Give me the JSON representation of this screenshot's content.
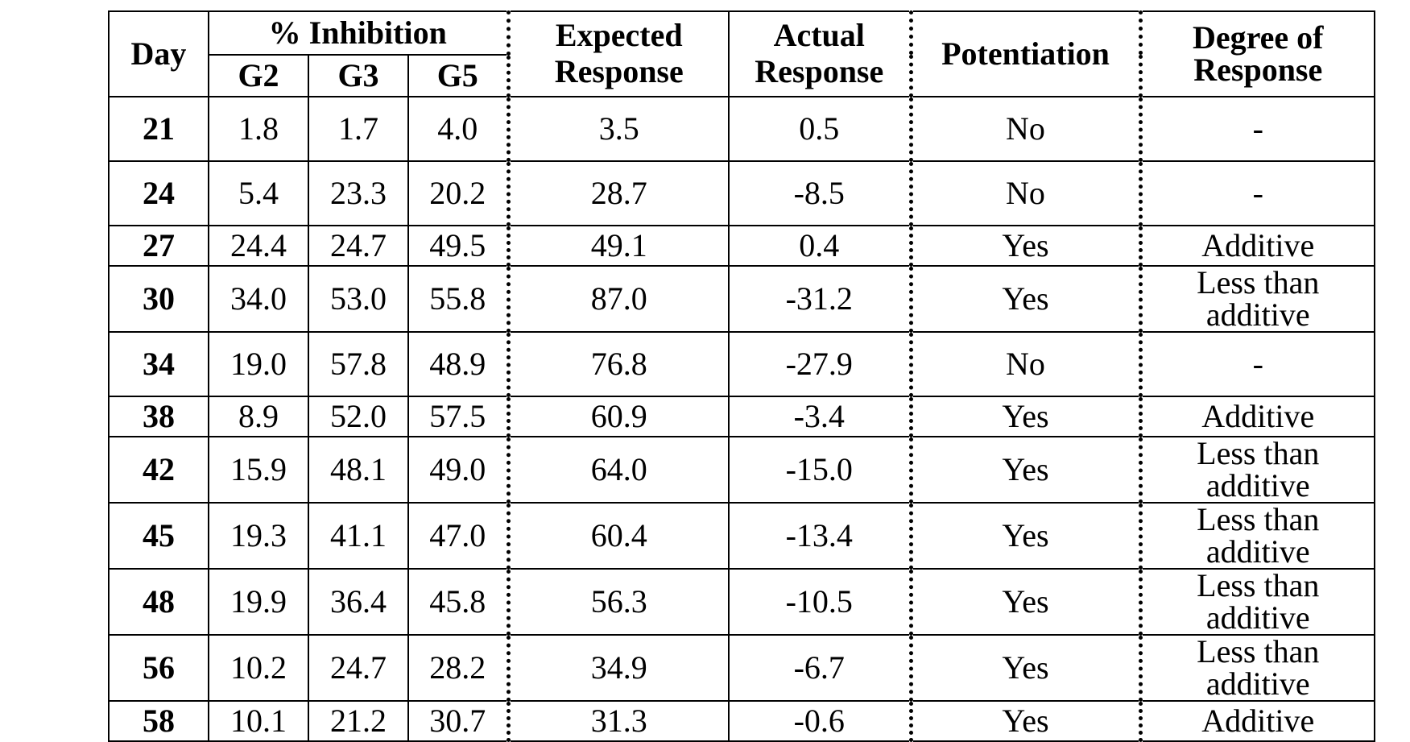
{
  "table": {
    "headers": {
      "day": "Day",
      "inhibition": "% Inhibition",
      "g2": "G2",
      "g3": "G3",
      "g5": "G5",
      "expected_line1": "Expected",
      "expected_line2": "Response",
      "actual_line1": "Actual",
      "actual_line2": "Response",
      "potentiation": "Potentiation",
      "degree": "Degree of  Response"
    },
    "rows": [
      {
        "day": "21",
        "g2": "1.8",
        "g3": "1.7",
        "g5": "4.0",
        "expected": "3.5",
        "actual": "0.5",
        "potentiation": "No",
        "degree": "-"
      },
      {
        "day": "24",
        "g2": "5.4",
        "g3": "23.3",
        "g5": "20.2",
        "expected": "28.7",
        "actual": "-8.5",
        "potentiation": "No",
        "degree": "-"
      },
      {
        "day": "27",
        "g2": "24.4",
        "g3": "24.7",
        "g5": "49.5",
        "expected": "49.1",
        "actual": "0.4",
        "potentiation": "Yes",
        "degree": "Additive"
      },
      {
        "day": "30",
        "g2": "34.0",
        "g3": "53.0",
        "g5": "55.8",
        "expected": "87.0",
        "actual": "-31.2",
        "potentiation": "Yes",
        "degree": "Less than additive"
      },
      {
        "day": "34",
        "g2": "19.0",
        "g3": "57.8",
        "g5": "48.9",
        "expected": "76.8",
        "actual": "-27.9",
        "potentiation": "No",
        "degree": "-"
      },
      {
        "day": "38",
        "g2": "8.9",
        "g3": "52.0",
        "g5": "57.5",
        "expected": "60.9",
        "actual": "-3.4",
        "potentiation": "Yes",
        "degree": "Additive"
      },
      {
        "day": "42",
        "g2": "15.9",
        "g3": "48.1",
        "g5": "49.0",
        "expected": "64.0",
        "actual": "-15.0",
        "potentiation": "Yes",
        "degree": "Less than additive"
      },
      {
        "day": "45",
        "g2": "19.3",
        "g3": "41.1",
        "g5": "47.0",
        "expected": "60.4",
        "actual": "-13.4",
        "potentiation": "Yes",
        "degree": "Less than additive"
      },
      {
        "day": "48",
        "g2": "19.9",
        "g3": "36.4",
        "g5": "45.8",
        "expected": "56.3",
        "actual": "-10.5",
        "potentiation": "Yes",
        "degree": "Less than additive"
      },
      {
        "day": "56",
        "g2": "10.2",
        "g3": "24.7",
        "g5": "28.2",
        "expected": "34.9",
        "actual": "-6.7",
        "potentiation": "Yes",
        "degree": "Less than additive"
      },
      {
        "day": "58",
        "g2": "10.1",
        "g3": "21.2",
        "g5": "30.7",
        "expected": "31.3",
        "actual": "-0.6",
        "potentiation": "Yes",
        "degree": "Additive"
      }
    ]
  }
}
